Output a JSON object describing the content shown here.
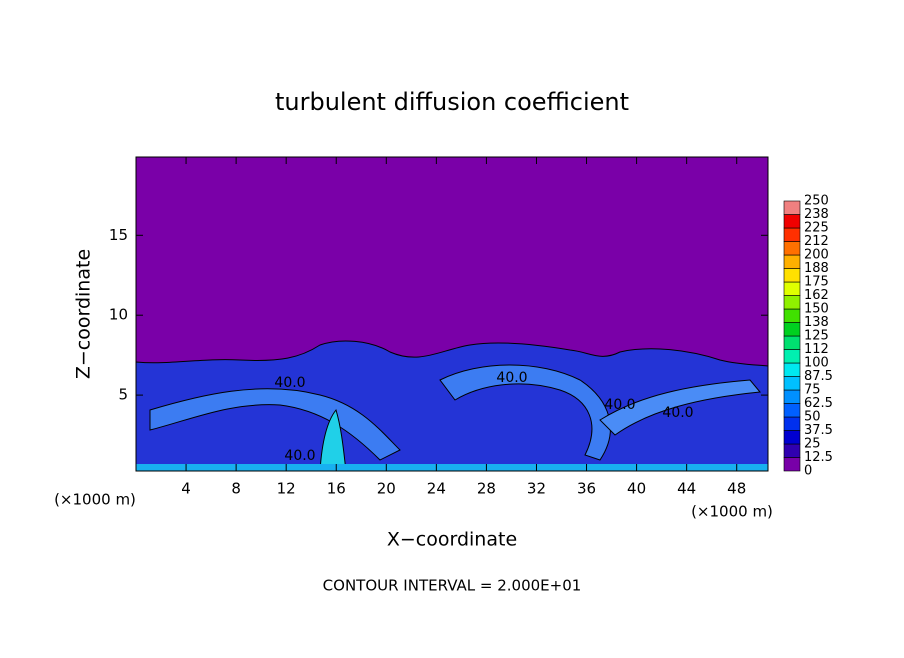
{
  "chart_data": {
    "type": "contour",
    "title": "turbulent diffusion coefficient",
    "xlabel": "X−coordinate",
    "ylabel": "Z−coordinate",
    "x_unit": "(×1000 m)",
    "xlim": [
      0,
      50.5
    ],
    "ylim": [
      0.25,
      19.9
    ],
    "xticks": [
      4,
      8,
      12,
      16,
      20,
      24,
      28,
      32,
      36,
      40,
      44,
      48
    ],
    "yticks": [
      5,
      10,
      15
    ],
    "contour_labels": [
      "40.0",
      "40.0",
      "40.0",
      "40.0",
      "40.0"
    ],
    "footnote": "CONTOUR INTERVAL = 2.000E+01",
    "colorbar": {
      "ticks": [
        0,
        12.5,
        25,
        37.5,
        50,
        62.5,
        75,
        87.5,
        100,
        {
          "value": 112.5,
          "label": "112"
        },
        125,
        {
          "value": 137.5,
          "label": "138"
        },
        150,
        {
          "value": 162.5,
          "label": "162"
        },
        175,
        {
          "value": 187.5,
          "label": "188"
        },
        200,
        {
          "value": 212.5,
          "label": "212"
        },
        225,
        {
          "value": 237.5,
          "label": "238"
        },
        250
      ],
      "colors": [
        "#7800a8",
        "#3000b0",
        "#0000d0",
        "#0030ee",
        "#0060ff",
        "#0090ff",
        "#00c0ff",
        "#00e8f0",
        "#00f0b0",
        "#00e070",
        "#00d020",
        "#40e000",
        "#90f000",
        "#e0ff00",
        "#ffe000",
        "#ffb000",
        "#ff7000",
        "#ff3000",
        "#f00000",
        "#f08080"
      ]
    }
  }
}
